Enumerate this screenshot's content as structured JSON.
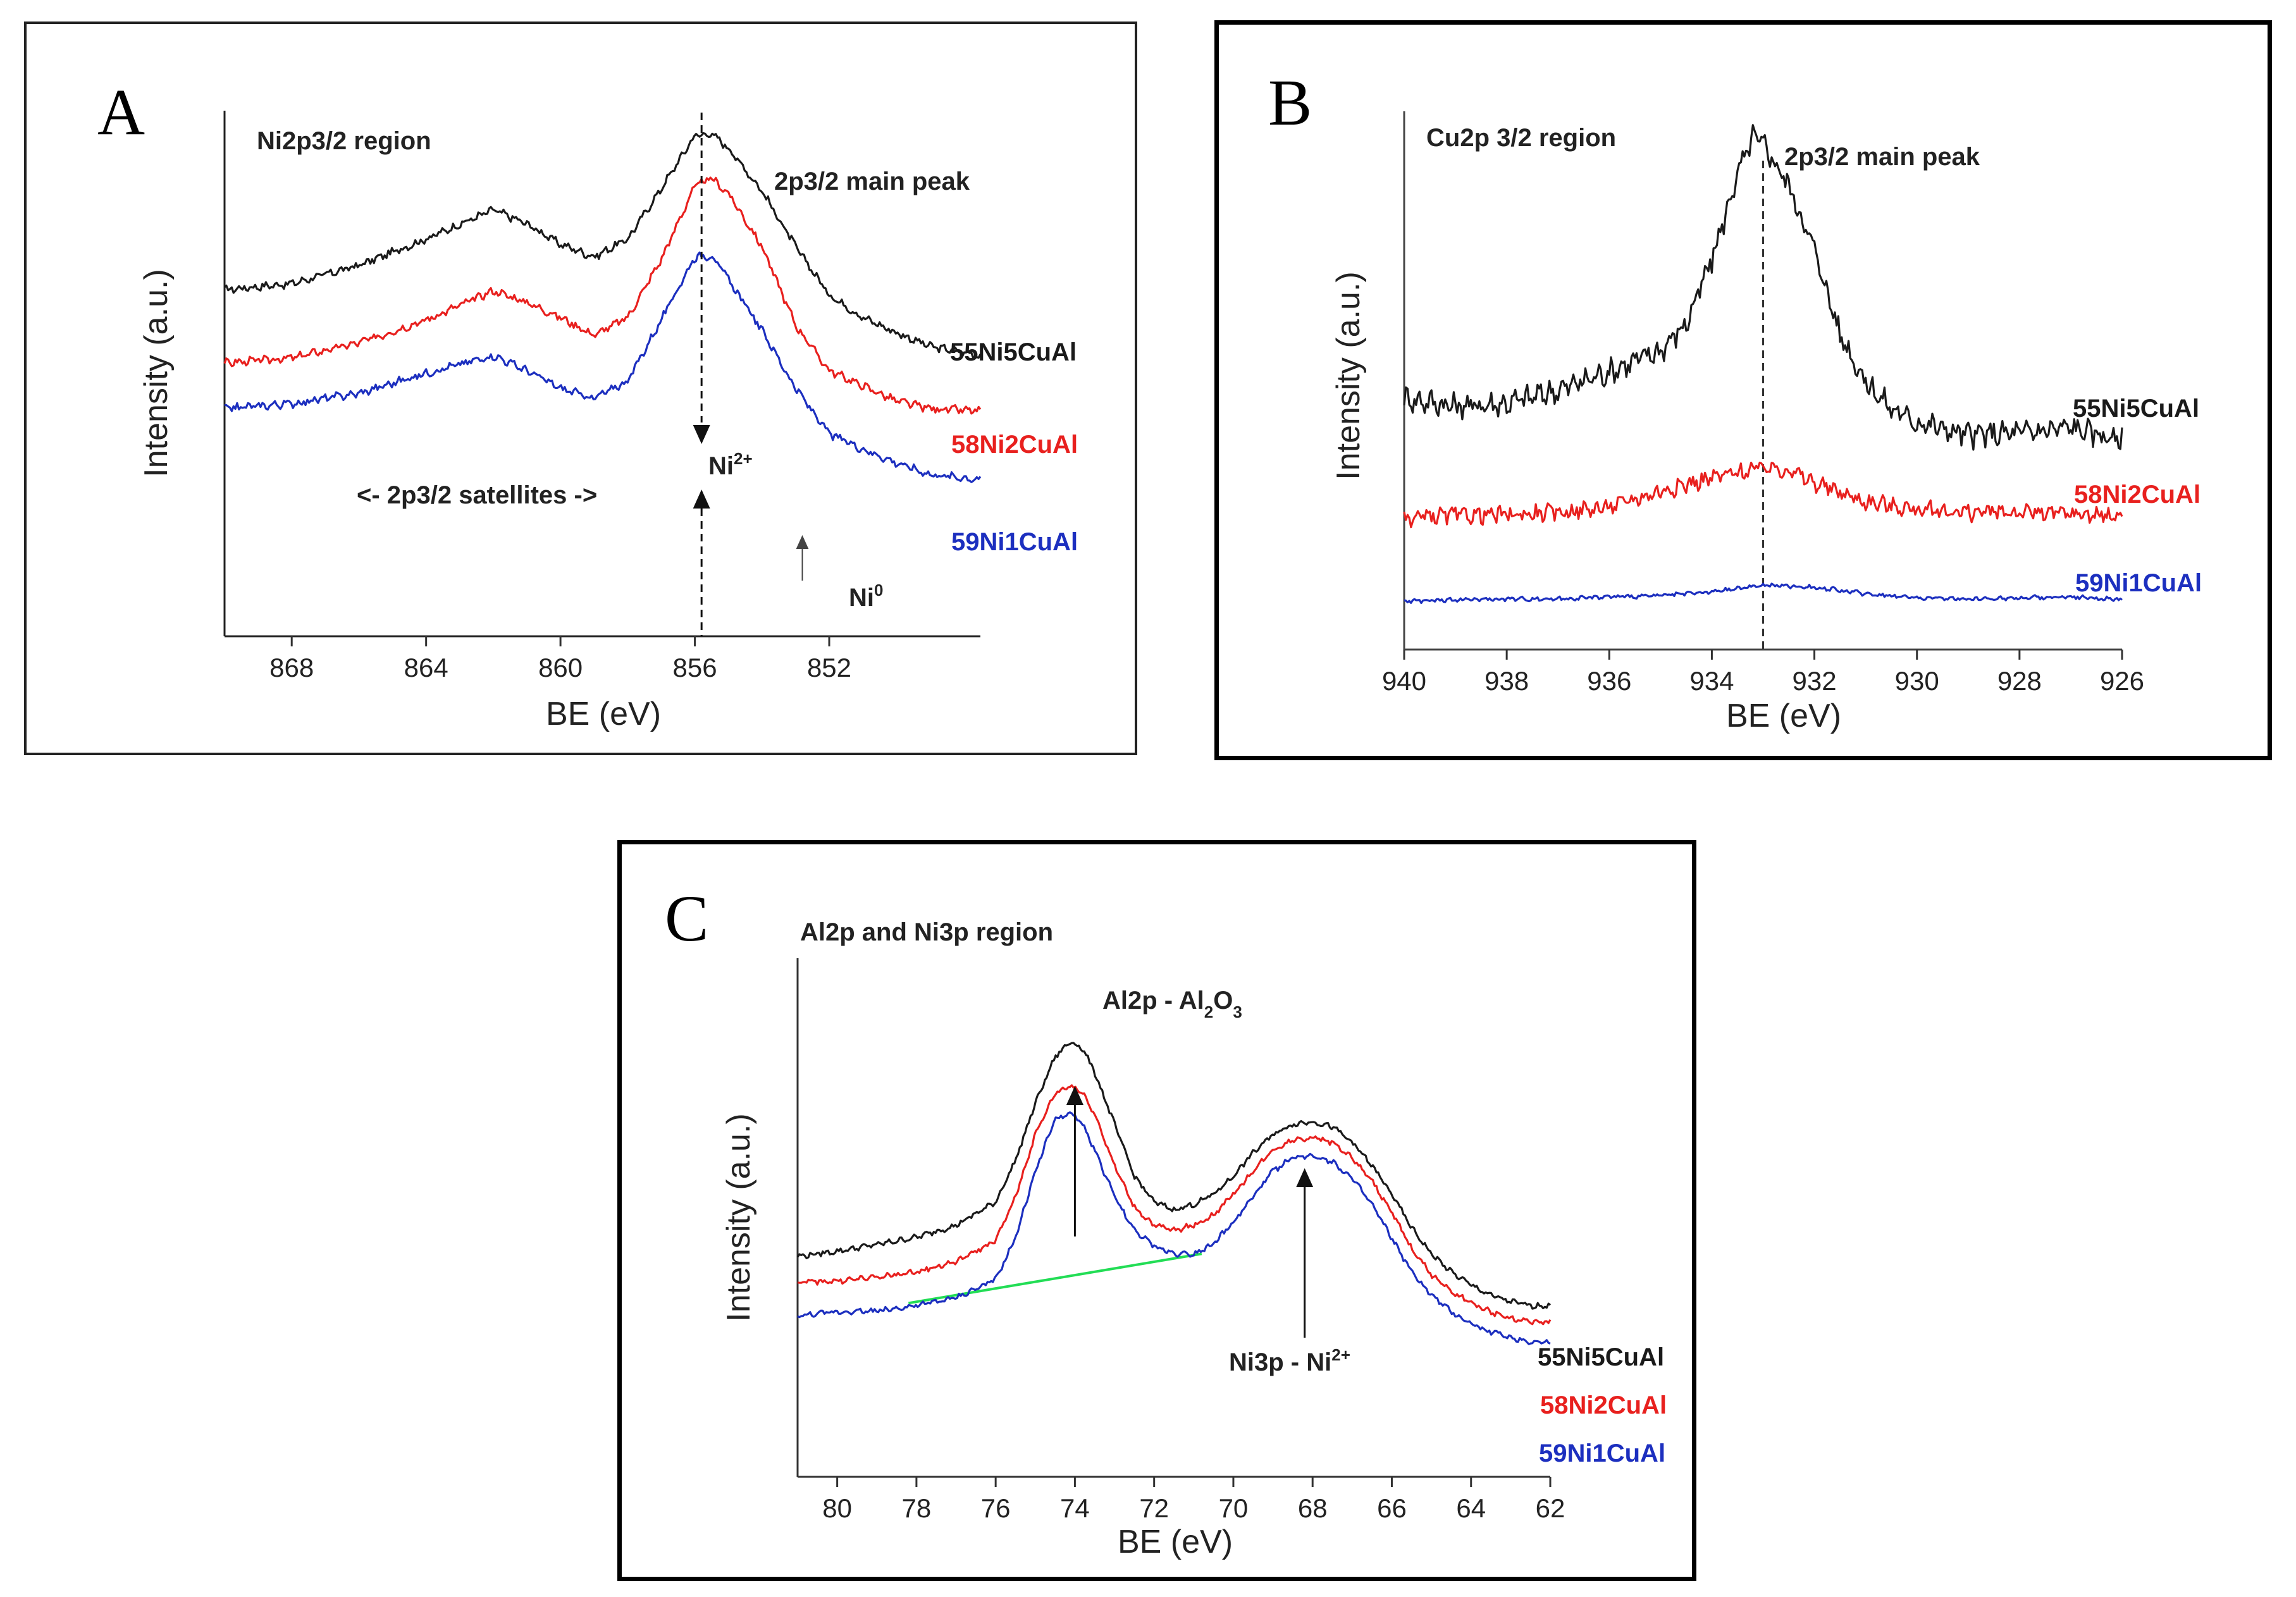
{
  "colors": {
    "black_series": "#1a1a1a",
    "red_series": "#e8201e",
    "blue_series": "#1c2fbf",
    "baseline": "#22dd55"
  },
  "chart_data": [
    {
      "type": "line",
      "panel_label": "A",
      "title": "Ni2p3/2 region",
      "xlabel": "BE (eV)",
      "ylabel": "Intensity (a.u.)",
      "x_reversed": true,
      "xlim": [
        870,
        847.5
      ],
      "ylim": [
        0,
        1
      ],
      "xticks": [
        868,
        864,
        860,
        856,
        852
      ],
      "series": [
        {
          "name": "55Ni5CuAl",
          "color": "#1a1a1a",
          "noise": 0.006,
          "points": [
            [
              870,
              0.6
            ],
            [
              868,
              0.612
            ],
            [
              866,
              0.648
            ],
            [
              864,
              0.7
            ],
            [
              862,
              0.758
            ],
            [
              861,
              0.73
            ],
            [
              860,
              0.69
            ],
            [
              859,
              0.665
            ],
            [
              858,
              0.7
            ],
            [
              857,
              0.8
            ],
            [
              856,
              0.905
            ],
            [
              855.5,
              0.908
            ],
            [
              855,
              0.88
            ],
            [
              854,
              0.795
            ],
            [
              853,
              0.685
            ],
            [
              852,
              0.59
            ],
            [
              851,
              0.545
            ],
            [
              850,
              0.515
            ],
            [
              849,
              0.488
            ],
            [
              847.5,
              0.47
            ]
          ]
        },
        {
          "name": "58Ni2CuAl",
          "color": "#e8201e",
          "noise": 0.006,
          "points": [
            [
              870,
              0.455
            ],
            [
              868,
              0.465
            ],
            [
              866,
              0.495
            ],
            [
              864,
              0.54
            ],
            [
              862,
              0.598
            ],
            [
              861,
              0.575
            ],
            [
              860,
              0.545
            ],
            [
              859,
              0.51
            ],
            [
              858,
              0.545
            ],
            [
              857,
              0.66
            ],
            [
              856,
              0.805
            ],
            [
              855.5,
              0.82
            ],
            [
              855,
              0.79
            ],
            [
              854,
              0.685
            ],
            [
              853,
              0.53
            ],
            [
              852,
              0.44
            ],
            [
              851,
              0.41
            ],
            [
              850,
              0.38
            ],
            [
              849,
              0.365
            ],
            [
              847.5,
              0.36
            ]
          ]
        },
        {
          "name": "59Ni1CuAl",
          "color": "#1c2fbf",
          "noise": 0.006,
          "points": [
            [
              870,
              0.365
            ],
            [
              868,
              0.375
            ],
            [
              866,
              0.395
            ],
            [
              864,
              0.435
            ],
            [
              862,
              0.47
            ],
            [
              861,
              0.44
            ],
            [
              860,
              0.405
            ],
            [
              859,
              0.385
            ],
            [
              858,
              0.42
            ],
            [
              857,
              0.54
            ],
            [
              856,
              0.665
            ],
            [
              855.5,
              0.668
            ],
            [
              855,
              0.62
            ],
            [
              854,
              0.52
            ],
            [
              853,
              0.405
            ],
            [
              852,
              0.315
            ],
            [
              851,
              0.285
            ],
            [
              850,
              0.258
            ],
            [
              849,
              0.235
            ],
            [
              847.5,
              0.225
            ]
          ]
        }
      ],
      "annotations": {
        "main_peak": "2p3/2 main peak",
        "satellites": "<- 2p3/2 satellites ->",
        "ni2_base": "Ni",
        "ni2_sup": "2+",
        "ni0_base": "Ni",
        "ni0_sup": "0"
      },
      "markers": {
        "ni2_be": 855.8,
        "ni0_be": 852.8
      }
    },
    {
      "type": "line",
      "panel_label": "B",
      "title": "Cu2p 3/2 region",
      "xlabel": "BE (eV)",
      "ylabel": "Intensity (a.u.)",
      "x_reversed": true,
      "xlim": [
        940,
        926
      ],
      "ylim": [
        0,
        1
      ],
      "xticks": [
        940,
        938,
        936,
        934,
        932,
        930,
        928,
        926
      ],
      "series": [
        {
          "name": "55Ni5CuAl",
          "color": "#1a1a1a",
          "noise": 0.018,
          "points": [
            [
              940,
              0.44
            ],
            [
              939,
              0.425
            ],
            [
              938,
              0.43
            ],
            [
              937,
              0.455
            ],
            [
              936,
              0.49
            ],
            [
              935,
              0.53
            ],
            [
              934.5,
              0.58
            ],
            [
              934,
              0.7
            ],
            [
              933.5,
              0.86
            ],
            [
              933.2,
              0.93
            ],
            [
              933,
              0.92
            ],
            [
              932.5,
              0.84
            ],
            [
              932,
              0.72
            ],
            [
              931.5,
              0.56
            ],
            [
              931,
              0.47
            ],
            [
              930.5,
              0.42
            ],
            [
              930,
              0.395
            ],
            [
              929,
              0.37
            ],
            [
              928,
              0.375
            ],
            [
              927,
              0.385
            ],
            [
              926,
              0.36
            ]
          ]
        },
        {
          "name": "58Ni2CuAl",
          "color": "#e8201e",
          "noise": 0.012,
          "points": [
            [
              940,
              0.215
            ],
            [
              939,
              0.22
            ],
            [
              938,
              0.22
            ],
            [
              937,
              0.225
            ],
            [
              936,
              0.235
            ],
            [
              935,
              0.265
            ],
            [
              934,
              0.29
            ],
            [
              933,
              0.31
            ],
            [
              932.5,
              0.305
            ],
            [
              932,
              0.28
            ],
            [
              931,
              0.245
            ],
            [
              930,
              0.23
            ],
            [
              929,
              0.225
            ],
            [
              928,
              0.225
            ],
            [
              927,
              0.222
            ],
            [
              926,
              0.218
            ]
          ]
        },
        {
          "name": "59Ni1CuAl",
          "color": "#1c2fbf",
          "noise": 0.003,
          "points": [
            [
              940,
              0.058
            ],
            [
              939,
              0.06
            ],
            [
              938,
              0.062
            ],
            [
              937,
              0.062
            ],
            [
              936,
              0.066
            ],
            [
              935,
              0.068
            ],
            [
              934,
              0.075
            ],
            [
              933,
              0.088
            ],
            [
              932,
              0.084
            ],
            [
              931,
              0.072
            ],
            [
              930,
              0.064
            ],
            [
              929,
              0.062
            ],
            [
              928,
              0.064
            ],
            [
              927,
              0.066
            ],
            [
              926,
              0.06
            ]
          ]
        }
      ],
      "annotations": {
        "main_peak": "2p3/2 main peak"
      },
      "markers": {
        "peak_be": 933
      }
    },
    {
      "type": "line",
      "panel_label": "C",
      "title": "Al2p and Ni3p region",
      "xlabel": "BE (eV)",
      "ylabel": "Intensity (a.u.)",
      "x_reversed": true,
      "xlim": [
        81,
        62
      ],
      "ylim": [
        0,
        1
      ],
      "xticks": [
        80,
        78,
        76,
        74,
        72,
        70,
        68,
        66,
        64,
        62
      ],
      "series": [
        {
          "name": "55Ni5CuAl",
          "color": "#1a1a1a",
          "noise": 0.004,
          "points": [
            [
              81,
              0.425
            ],
            [
              80,
              0.435
            ],
            [
              79,
              0.448
            ],
            [
              78,
              0.462
            ],
            [
              77,
              0.485
            ],
            [
              76,
              0.53
            ],
            [
              75.5,
              0.61
            ],
            [
              75,
              0.72
            ],
            [
              74.5,
              0.81
            ],
            [
              74.1,
              0.84
            ],
            [
              73.8,
              0.825
            ],
            [
              73.5,
              0.78
            ],
            [
              73,
              0.68
            ],
            [
              72.5,
              0.58
            ],
            [
              72,
              0.53
            ],
            [
              71.5,
              0.515
            ],
            [
              71,
              0.525
            ],
            [
              70.5,
              0.545
            ],
            [
              70,
              0.58
            ],
            [
              69.5,
              0.625
            ],
            [
              69,
              0.66
            ],
            [
              68.5,
              0.68
            ],
            [
              68,
              0.685
            ],
            [
              67.5,
              0.675
            ],
            [
              67,
              0.645
            ],
            [
              66.5,
              0.6
            ],
            [
              66,
              0.545
            ],
            [
              65.5,
              0.48
            ],
            [
              65,
              0.43
            ],
            [
              64.5,
              0.395
            ],
            [
              64,
              0.37
            ],
            [
              63.5,
              0.35
            ],
            [
              63,
              0.338
            ],
            [
              62.5,
              0.33
            ]
          ]
        },
        {
          "name": "58Ni2CuAl",
          "color": "#e8201e",
          "noise": 0.004,
          "points": [
            [
              81,
              0.375
            ],
            [
              80,
              0.378
            ],
            [
              79,
              0.385
            ],
            [
              78,
              0.395
            ],
            [
              77,
              0.415
            ],
            [
              76,
              0.455
            ],
            [
              75.5,
              0.54
            ],
            [
              75,
              0.66
            ],
            [
              74.5,
              0.74
            ],
            [
              74.1,
              0.755
            ],
            [
              73.8,
              0.74
            ],
            [
              73.5,
              0.7
            ],
            [
              73,
              0.6
            ],
            [
              72.5,
              0.52
            ],
            [
              72,
              0.485
            ],
            [
              71.5,
              0.475
            ],
            [
              71,
              0.485
            ],
            [
              70.5,
              0.505
            ],
            [
              70,
              0.545
            ],
            [
              69.5,
              0.59
            ],
            [
              69,
              0.63
            ],
            [
              68.5,
              0.65
            ],
            [
              68,
              0.655
            ],
            [
              67.5,
              0.645
            ],
            [
              67,
              0.615
            ],
            [
              66.5,
              0.57
            ],
            [
              66,
              0.51
            ],
            [
              65.5,
              0.44
            ],
            [
              65,
              0.39
            ],
            [
              64.5,
              0.358
            ],
            [
              64,
              0.335
            ],
            [
              63.5,
              0.318
            ],
            [
              63,
              0.305
            ],
            [
              62.5,
              0.298
            ]
          ]
        },
        {
          "name": "59Ni1CuAl",
          "color": "#1c2fbf",
          "noise": 0.004,
          "points": [
            [
              81,
              0.31
            ],
            [
              80,
              0.318
            ],
            [
              79,
              0.32
            ],
            [
              78,
              0.33
            ],
            [
              77,
              0.345
            ],
            [
              76,
              0.38
            ],
            [
              75.5,
              0.46
            ],
            [
              75,
              0.59
            ],
            [
              74.5,
              0.69
            ],
            [
              74.1,
              0.7
            ],
            [
              73.8,
              0.68
            ],
            [
              73.5,
              0.63
            ],
            [
              73,
              0.54
            ],
            [
              72.5,
              0.475
            ],
            [
              72,
              0.445
            ],
            [
              71.5,
              0.43
            ],
            [
              71,
              0.43
            ],
            [
              70.5,
              0.45
            ],
            [
              70,
              0.49
            ],
            [
              69.5,
              0.54
            ],
            [
              69,
              0.59
            ],
            [
              68.5,
              0.615
            ],
            [
              68,
              0.62
            ],
            [
              67.5,
              0.608
            ],
            [
              67,
              0.575
            ],
            [
              66.5,
              0.525
            ],
            [
              66,
              0.46
            ],
            [
              65.5,
              0.395
            ],
            [
              65,
              0.35
            ],
            [
              64.5,
              0.318
            ],
            [
              64,
              0.295
            ],
            [
              63.5,
              0.28
            ],
            [
              63,
              0.268
            ],
            [
              62.5,
              0.26
            ]
          ]
        }
      ],
      "baseline": {
        "from": [
          78.2,
          0.335
        ],
        "to": [
          70.8,
          0.43
        ]
      },
      "annotations": {
        "al_label_base": "Al2p - Al",
        "al_sub1": "2",
        "al_mid": "O",
        "al_sub2": "3",
        "ni_label_base": "Ni3p - Ni",
        "ni_sup": "2+"
      },
      "markers": {
        "al_be": 74,
        "ni_be": 68.2
      }
    }
  ]
}
